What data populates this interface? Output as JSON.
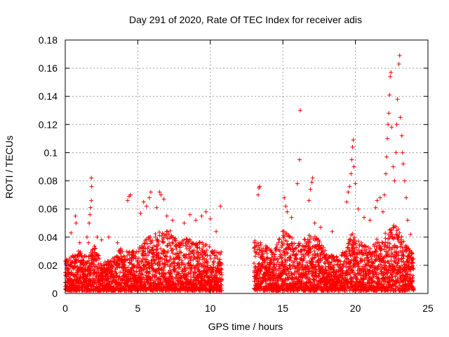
{
  "chart_data": {
    "type": "scatter",
    "title": "Day 291 of 2020, Rate Of TEC Index for receiver adis",
    "xlabel": "GPS time / hours",
    "ylabel": "ROTI / TECUs",
    "xlim": [
      0,
      25
    ],
    "ylim": [
      0,
      0.18
    ],
    "x_ticks": [
      0,
      5,
      10,
      15,
      20,
      25
    ],
    "y_ticks": [
      0,
      0.02,
      0.04,
      0.06,
      0.08,
      0.1,
      0.12,
      0.14,
      0.16,
      0.18
    ],
    "x_tick_labels": [
      "0",
      "5",
      "10",
      "15",
      "20",
      "25"
    ],
    "y_tick_labels": [
      "0",
      "0.02",
      "0.04",
      "0.06",
      "0.08",
      "0.1",
      "0.12",
      "0.14",
      "0.16",
      "0.18"
    ],
    "grid": true,
    "marker": "+",
    "color": "#ff0000",
    "data_gap_hours": [
      10.8,
      13.0
    ],
    "series": [
      {
        "name": "ROTI",
        "envelope": [
          {
            "x": 0.0,
            "y": 0.024
          },
          {
            "x": 0.6,
            "y": 0.028
          },
          {
            "x": 1.0,
            "y": 0.031
          },
          {
            "x": 1.6,
            "y": 0.026
          },
          {
            "x": 2.0,
            "y": 0.034
          },
          {
            "x": 2.6,
            "y": 0.022
          },
          {
            "x": 3.2,
            "y": 0.024
          },
          {
            "x": 3.8,
            "y": 0.032
          },
          {
            "x": 4.4,
            "y": 0.03
          },
          {
            "x": 5.0,
            "y": 0.032
          },
          {
            "x": 5.5,
            "y": 0.038
          },
          {
            "x": 6.0,
            "y": 0.042
          },
          {
            "x": 6.6,
            "y": 0.044
          },
          {
            "x": 7.2,
            "y": 0.046
          },
          {
            "x": 7.8,
            "y": 0.036
          },
          {
            "x": 8.4,
            "y": 0.04
          },
          {
            "x": 9.0,
            "y": 0.038
          },
          {
            "x": 9.6,
            "y": 0.036
          },
          {
            "x": 10.2,
            "y": 0.032
          },
          {
            "x": 10.7,
            "y": 0.03
          },
          {
            "x": 13.1,
            "y": 0.038
          },
          {
            "x": 13.8,
            "y": 0.034
          },
          {
            "x": 14.4,
            "y": 0.03
          },
          {
            "x": 15.0,
            "y": 0.046
          },
          {
            "x": 15.6,
            "y": 0.04
          },
          {
            "x": 16.2,
            "y": 0.036
          },
          {
            "x": 16.8,
            "y": 0.042
          },
          {
            "x": 17.4,
            "y": 0.04
          },
          {
            "x": 18.0,
            "y": 0.03
          },
          {
            "x": 18.6,
            "y": 0.026
          },
          {
            "x": 19.2,
            "y": 0.03
          },
          {
            "x": 19.8,
            "y": 0.044
          },
          {
            "x": 20.4,
            "y": 0.036
          },
          {
            "x": 21.0,
            "y": 0.034
          },
          {
            "x": 21.6,
            "y": 0.04
          },
          {
            "x": 22.2,
            "y": 0.044
          },
          {
            "x": 22.8,
            "y": 0.05
          },
          {
            "x": 23.4,
            "y": 0.036
          },
          {
            "x": 24.0,
            "y": 0.028
          }
        ],
        "spikes": [
          {
            "x": 0.4,
            "y": 0.043
          },
          {
            "x": 0.7,
            "y": 0.055
          },
          {
            "x": 0.75,
            "y": 0.05
          },
          {
            "x": 1.0,
            "y": 0.036
          },
          {
            "x": 1.5,
            "y": 0.04
          },
          {
            "x": 1.6,
            "y": 0.036
          },
          {
            "x": 1.65,
            "y": 0.05
          },
          {
            "x": 1.7,
            "y": 0.056
          },
          {
            "x": 1.75,
            "y": 0.061
          },
          {
            "x": 1.8,
            "y": 0.066
          },
          {
            "x": 1.82,
            "y": 0.076
          },
          {
            "x": 1.8,
            "y": 0.082
          },
          {
            "x": 2.2,
            "y": 0.04
          },
          {
            "x": 2.5,
            "y": 0.038
          },
          {
            "x": 3.0,
            "y": 0.04
          },
          {
            "x": 3.6,
            "y": 0.036
          },
          {
            "x": 4.3,
            "y": 0.066
          },
          {
            "x": 4.4,
            "y": 0.069
          },
          {
            "x": 4.5,
            "y": 0.07
          },
          {
            "x": 5.2,
            "y": 0.057
          },
          {
            "x": 5.4,
            "y": 0.065
          },
          {
            "x": 5.6,
            "y": 0.062
          },
          {
            "x": 5.8,
            "y": 0.068
          },
          {
            "x": 5.9,
            "y": 0.072
          },
          {
            "x": 6.3,
            "y": 0.061
          },
          {
            "x": 6.5,
            "y": 0.072
          },
          {
            "x": 6.6,
            "y": 0.07
          },
          {
            "x": 6.8,
            "y": 0.067
          },
          {
            "x": 7.0,
            "y": 0.055
          },
          {
            "x": 7.4,
            "y": 0.052
          },
          {
            "x": 8.2,
            "y": 0.05
          },
          {
            "x": 8.6,
            "y": 0.056
          },
          {
            "x": 9.0,
            "y": 0.052
          },
          {
            "x": 9.4,
            "y": 0.055
          },
          {
            "x": 9.7,
            "y": 0.058
          },
          {
            "x": 10.0,
            "y": 0.053
          },
          {
            "x": 10.4,
            "y": 0.044
          },
          {
            "x": 10.7,
            "y": 0.062
          },
          {
            "x": 13.3,
            "y": 0.07
          },
          {
            "x": 13.35,
            "y": 0.075
          },
          {
            "x": 13.4,
            "y": 0.076
          },
          {
            "x": 15.1,
            "y": 0.068
          },
          {
            "x": 15.2,
            "y": 0.062
          },
          {
            "x": 15.3,
            "y": 0.058
          },
          {
            "x": 15.6,
            "y": 0.054
          },
          {
            "x": 16.0,
            "y": 0.078
          },
          {
            "x": 16.15,
            "y": 0.095
          },
          {
            "x": 16.2,
            "y": 0.13
          },
          {
            "x": 16.8,
            "y": 0.066
          },
          {
            "x": 16.9,
            "y": 0.074
          },
          {
            "x": 17.0,
            "y": 0.079
          },
          {
            "x": 17.05,
            "y": 0.082
          },
          {
            "x": 17.2,
            "y": 0.05
          },
          {
            "x": 17.6,
            "y": 0.047
          },
          {
            "x": 18.4,
            "y": 0.044
          },
          {
            "x": 19.4,
            "y": 0.065
          },
          {
            "x": 19.5,
            "y": 0.072
          },
          {
            "x": 19.6,
            "y": 0.076
          },
          {
            "x": 19.7,
            "y": 0.085
          },
          {
            "x": 19.75,
            "y": 0.095
          },
          {
            "x": 19.8,
            "y": 0.104
          },
          {
            "x": 19.85,
            "y": 0.109
          },
          {
            "x": 19.9,
            "y": 0.09
          },
          {
            "x": 20.0,
            "y": 0.078
          },
          {
            "x": 20.2,
            "y": 0.06
          },
          {
            "x": 20.6,
            "y": 0.054
          },
          {
            "x": 21.0,
            "y": 0.052
          },
          {
            "x": 21.4,
            "y": 0.061
          },
          {
            "x": 21.5,
            "y": 0.066
          },
          {
            "x": 21.7,
            "y": 0.068
          },
          {
            "x": 21.9,
            "y": 0.058
          },
          {
            "x": 22.0,
            "y": 0.07
          },
          {
            "x": 22.1,
            "y": 0.085
          },
          {
            "x": 22.15,
            "y": 0.097
          },
          {
            "x": 22.2,
            "y": 0.11
          },
          {
            "x": 22.25,
            "y": 0.12
          },
          {
            "x": 22.3,
            "y": 0.128
          },
          {
            "x": 22.35,
            "y": 0.141
          },
          {
            "x": 22.4,
            "y": 0.154
          },
          {
            "x": 22.45,
            "y": 0.157
          },
          {
            "x": 22.5,
            "y": 0.118
          },
          {
            "x": 22.6,
            "y": 0.09
          },
          {
            "x": 22.7,
            "y": 0.08
          },
          {
            "x": 22.8,
            "y": 0.1
          },
          {
            "x": 22.85,
            "y": 0.12
          },
          {
            "x": 22.9,
            "y": 0.138
          },
          {
            "x": 23.0,
            "y": 0.163
          },
          {
            "x": 23.05,
            "y": 0.169
          },
          {
            "x": 23.1,
            "y": 0.125
          },
          {
            "x": 23.2,
            "y": 0.112
          },
          {
            "x": 23.25,
            "y": 0.1
          },
          {
            "x": 23.3,
            "y": 0.092
          },
          {
            "x": 23.4,
            "y": 0.08
          },
          {
            "x": 23.5,
            "y": 0.068
          },
          {
            "x": 23.6,
            "y": 0.052
          },
          {
            "x": 23.8,
            "y": 0.042
          }
        ]
      }
    ]
  }
}
